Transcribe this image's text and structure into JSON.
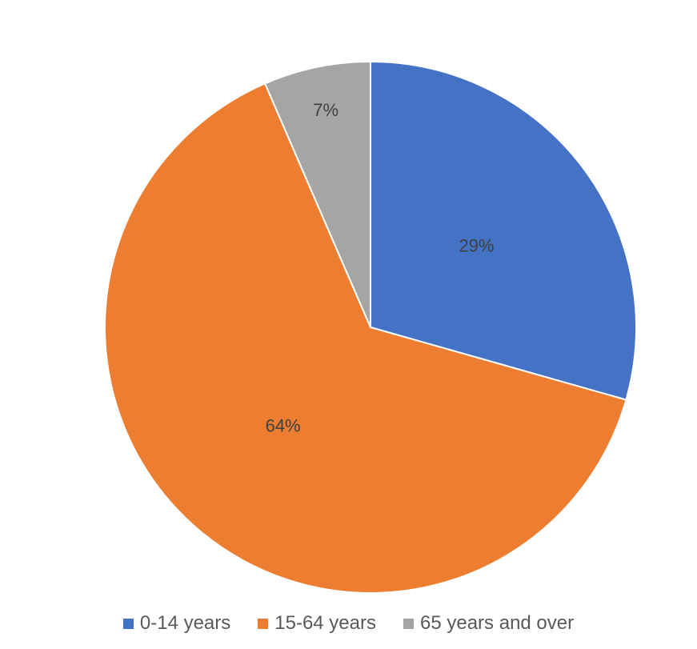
{
  "chart_data": {
    "type": "pie",
    "title": "",
    "categories": [
      "0-14 years",
      "15-64 years",
      "65 years and over"
    ],
    "values": [
      29.4,
      64.1,
      6.5
    ],
    "data_labels": [
      "29%",
      "64%",
      "7%"
    ],
    "colors": [
      "#4472C4",
      "#ED7D31",
      "#A5A5A5"
    ],
    "start_angle_deg": 0,
    "direction": "clockwise",
    "legend_position": "bottom"
  }
}
